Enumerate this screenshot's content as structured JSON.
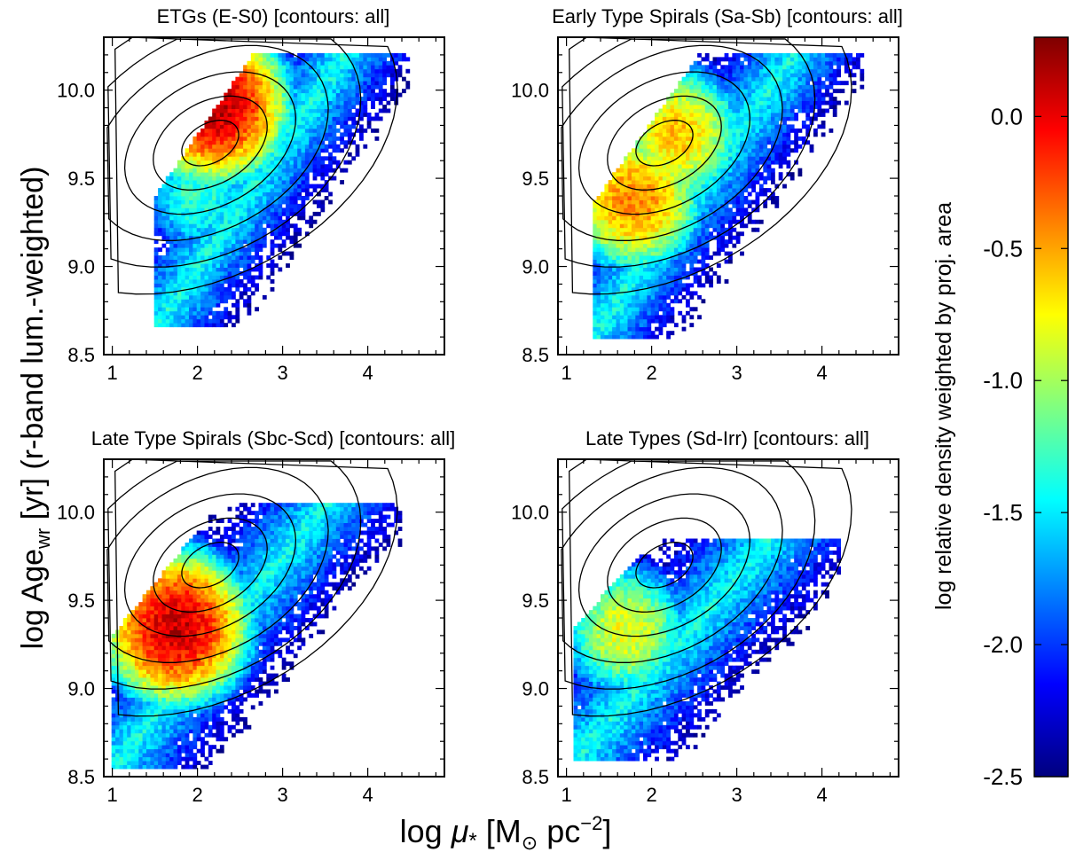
{
  "figure": {
    "ylabel_main": "log Age",
    "ylabel_sub": "wr",
    "ylabel_rest": " [yr]  (r-band lum.-weighted)",
    "xlabel_main": "log ",
    "xlabel_mu": "μ",
    "xlabel_star": "*",
    "xlabel_unit": " [M",
    "xlabel_odot": "⊙",
    "xlabel_pc": " pc",
    "xlabel_exp": "−2",
    "xlabel_close": "]"
  },
  "colorbar": {
    "label": "log relative density weighted by proj. area",
    "range": [
      -2.5,
      0.3
    ],
    "ticks": [
      "0.0",
      "-0.5",
      "-1.0",
      "-1.5",
      "-2.0",
      "-2.5"
    ],
    "tick_values": [
      0.0,
      -0.5,
      -1.0,
      -1.5,
      -2.0,
      -2.5
    ],
    "colors": [
      "#00007f",
      "#0000ff",
      "#0080ff",
      "#00ffff",
      "#80ff80",
      "#ffff00",
      "#ff8000",
      "#ff0000",
      "#7f0000"
    ]
  },
  "chart_data": [
    {
      "type": "heatmap",
      "title": "ETGs (E-S0) [contours: all]",
      "xlim": [
        0.9,
        4.9
      ],
      "ylim": [
        8.5,
        10.3
      ],
      "xticks": [
        "1",
        "2",
        "3",
        "4"
      ],
      "xtick_values": [
        1,
        2,
        3,
        4
      ],
      "yticks": [
        "8.5",
        "9.0",
        "9.5",
        "10.0"
      ],
      "ytick_values": [
        8.5,
        9.0,
        9.5,
        10.0
      ],
      "density_peaks": [
        {
          "x": 2.2,
          "y": 9.92,
          "log_density": 0.15
        },
        {
          "x": 2.0,
          "y": 9.4,
          "log_density": -1.3
        }
      ],
      "spread": {
        "x_min": 1.5,
        "x_max": 4.5,
        "y_min": 8.65,
        "y_max": 10.2
      }
    },
    {
      "type": "heatmap",
      "title": "Early Type Spirals (Sa-Sb) [contours: all]",
      "xlim": [
        0.9,
        4.9
      ],
      "ylim": [
        8.5,
        10.3
      ],
      "xticks": [
        "1",
        "2",
        "3",
        "4"
      ],
      "xtick_values": [
        1,
        2,
        3,
        4
      ],
      "yticks": [
        "8.5",
        "9.0",
        "9.5",
        "10.0"
      ],
      "ytick_values": [
        8.5,
        9.0,
        9.5,
        10.0
      ],
      "density_peaks": [
        {
          "x": 1.8,
          "y": 9.38,
          "log_density": -0.4
        },
        {
          "x": 2.3,
          "y": 9.75,
          "log_density": -0.6
        }
      ],
      "spread": {
        "x_min": 1.3,
        "x_max": 4.5,
        "y_min": 8.6,
        "y_max": 10.2
      }
    },
    {
      "type": "heatmap",
      "title": "Late Type Spirals (Sbc-Scd) [contours: all]",
      "xlim": [
        0.9,
        4.9
      ],
      "ylim": [
        8.5,
        10.3
      ],
      "xticks": [
        "1",
        "2",
        "3",
        "4"
      ],
      "xtick_values": [
        1,
        2,
        3,
        4
      ],
      "yticks": [
        "8.5",
        "9.0",
        "9.5",
        "10.0"
      ],
      "ytick_values": [
        8.5,
        9.0,
        9.5,
        10.0
      ],
      "density_peaks": [
        {
          "x": 1.75,
          "y": 9.35,
          "log_density": 0.1
        }
      ],
      "spread": {
        "x_min": 1.0,
        "x_max": 4.4,
        "y_min": 8.55,
        "y_max": 10.05
      }
    },
    {
      "type": "heatmap",
      "title": "Late Types (Sd-Irr) [contours: all]",
      "xlim": [
        0.9,
        4.9
      ],
      "ylim": [
        8.5,
        10.3
      ],
      "xticks": [
        "1",
        "2",
        "3",
        "4"
      ],
      "xtick_values": [
        1,
        2,
        3,
        4
      ],
      "yticks": [
        "8.5",
        "9.0",
        "9.5",
        "10.0"
      ],
      "ytick_values": [
        8.5,
        9.0,
        9.5,
        10.0
      ],
      "density_peaks": [
        {
          "x": 1.7,
          "y": 9.33,
          "log_density": -0.8
        }
      ],
      "spread": {
        "x_min": 1.1,
        "x_max": 4.2,
        "y_min": 8.6,
        "y_max": 9.85
      }
    }
  ]
}
